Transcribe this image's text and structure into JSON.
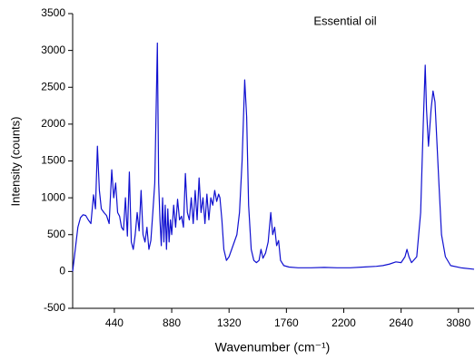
{
  "chart_data": {
    "type": "line",
    "title": "Essential oil",
    "x_label": "Wavenumber (cm⁻¹)",
    "y_label": "Intensity (counts)",
    "xlim": [
      120,
      3200
    ],
    "xticks": [
      440,
      880,
      1320,
      1760,
      2200,
      2640,
      3080
    ],
    "ylim": [
      -500,
      3500
    ],
    "yticks": [
      -500,
      0,
      500,
      1000,
      1500,
      2000,
      2500,
      3000,
      3500
    ],
    "series": [
      {
        "name": "Essential oil",
        "color": "#1010d0",
        "x": [
          120,
          140,
          160,
          180,
          200,
          220,
          240,
          260,
          280,
          295,
          310,
          325,
          340,
          360,
          380,
          400,
          420,
          435,
          450,
          465,
          480,
          495,
          510,
          525,
          540,
          555,
          570,
          585,
          600,
          615,
          630,
          645,
          660,
          675,
          690,
          705,
          720,
          735,
          750,
          770,
          780,
          790,
          800,
          810,
          820,
          830,
          840,
          850,
          860,
          870,
          880,
          895,
          910,
          925,
          940,
          955,
          970,
          985,
          1000,
          1015,
          1030,
          1045,
          1060,
          1075,
          1090,
          1105,
          1120,
          1135,
          1150,
          1165,
          1180,
          1195,
          1210,
          1225,
          1240,
          1250,
          1265,
          1280,
          1300,
          1320,
          1340,
          1360,
          1380,
          1400,
          1420,
          1440,
          1455,
          1470,
          1490,
          1510,
          1530,
          1550,
          1565,
          1580,
          1600,
          1620,
          1640,
          1655,
          1670,
          1685,
          1700,
          1715,
          1740,
          1780,
          1850,
          1950,
          2050,
          2150,
          2250,
          2350,
          2450,
          2500,
          2550,
          2600,
          2640,
          2670,
          2685,
          2700,
          2720,
          2760,
          2790,
          2810,
          2825,
          2835,
          2850,
          2870,
          2885,
          2900,
          2915,
          2930,
          2950,
          2980,
          3020,
          3100,
          3200
        ],
        "values": [
          0,
          300,
          600,
          730,
          770,
          760,
          700,
          650,
          1040,
          850,
          1700,
          1100,
          850,
          800,
          760,
          650,
          1380,
          1000,
          1200,
          800,
          750,
          600,
          560,
          1000,
          480,
          1350,
          400,
          300,
          500,
          800,
          550,
          1100,
          500,
          400,
          600,
          300,
          420,
          800,
          1200,
          3100,
          1200,
          700,
          350,
          1000,
          400,
          900,
          300,
          850,
          400,
          700,
          500,
          900,
          600,
          980,
          700,
          750,
          600,
          1330,
          800,
          700,
          1000,
          650,
          1100,
          700,
          1270,
          800,
          1000,
          650,
          1050,
          700,
          1000,
          900,
          1100,
          950,
          1050,
          1000,
          700,
          300,
          150,
          200,
          300,
          400,
          500,
          800,
          1500,
          2600,
          2100,
          900,
          300,
          150,
          120,
          150,
          300,
          180,
          250,
          400,
          800,
          500,
          600,
          350,
          420,
          150,
          80,
          60,
          50,
          50,
          55,
          50,
          50,
          60,
          70,
          80,
          100,
          130,
          120,
          200,
          300,
          200,
          120,
          200,
          800,
          2000,
          2800,
          2200,
          1700,
          2200,
          2450,
          2300,
          1750,
          1200,
          500,
          200,
          80,
          50,
          30
        ]
      }
    ]
  }
}
